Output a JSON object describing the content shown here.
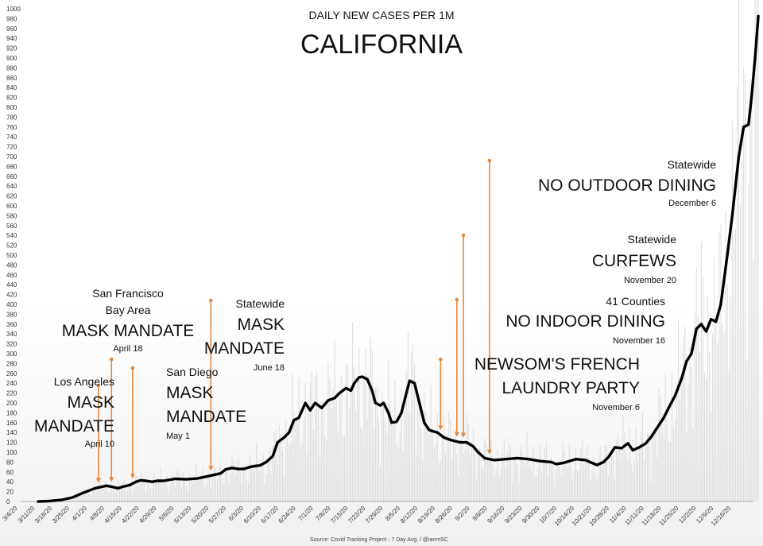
{
  "chart_data": {
    "type": "line",
    "title": "CALIFORNIA",
    "subtitle": "DAILY NEW CASES PER 1M",
    "source": "Source: Covid Tracking Project - 7 Day Avg. / @ianmSC",
    "ylim": [
      0,
      1000
    ],
    "y_ticks": [
      "0",
      "20",
      "40",
      "60",
      "80",
      "100",
      "120",
      "140",
      "160",
      "180",
      "200",
      "220",
      "240",
      "260",
      "280",
      "300",
      "320",
      "340",
      "360",
      "380",
      "400",
      "420",
      "440",
      "460",
      "480",
      "500",
      "520",
      "540",
      "560",
      "580",
      "600",
      "620",
      "640",
      "660",
      "680",
      "700",
      "720",
      "740",
      "760",
      "780",
      "800",
      "820",
      "840",
      "860",
      "880",
      "900",
      "920",
      "940",
      "960",
      "980",
      "1000"
    ],
    "x_ticks": [
      "3/4/20",
      "3/11/20",
      "3/18/20",
      "3/25/20",
      "4/1/20",
      "4/8/20",
      "4/15/20",
      "4/22/20",
      "4/29/20",
      "5/6/20",
      "5/13/20",
      "5/20/20",
      "5/27/20",
      "6/3/20",
      "6/10/20",
      "6/17/20",
      "6/24/20",
      "7/1/20",
      "7/8/20",
      "7/15/20",
      "7/22/20",
      "7/29/20",
      "8/5/20",
      "8/12/20",
      "8/19/20",
      "8/26/20",
      "9/2/20",
      "9/9/20",
      "9/16/20",
      "9/23/20",
      "9/30/20",
      "10/7/20",
      "10/14/20",
      "10/21/20",
      "10/28/20",
      "11/4/20",
      "11/11/20",
      "11/18/20",
      "11/25/20",
      "12/2/20",
      "12/9/20",
      "12/16/20"
    ],
    "grid": "vertical bars (daily values)",
    "series": [
      {
        "points": [
          [
            0,
            0
          ],
          [
            7,
            1
          ],
          [
            14,
            3
          ],
          [
            21,
            8
          ],
          [
            28,
            18
          ],
          [
            35,
            27
          ],
          [
            42,
            32
          ],
          [
            45,
            30
          ],
          [
            49,
            27
          ],
          [
            52,
            30
          ],
          [
            56,
            33
          ],
          [
            60,
            40
          ],
          [
            63,
            43
          ],
          [
            66,
            42
          ],
          [
            70,
            40
          ],
          [
            73,
            42
          ],
          [
            77,
            42
          ],
          [
            84,
            46
          ],
          [
            91,
            45
          ],
          [
            98,
            47
          ],
          [
            105,
            52
          ],
          [
            112,
            57
          ],
          [
            115,
            65
          ],
          [
            119,
            68
          ],
          [
            123,
            66
          ],
          [
            126,
            66
          ],
          [
            130,
            70
          ],
          [
            133,
            72
          ],
          [
            136,
            73
          ],
          [
            140,
            80
          ],
          [
            144,
            92
          ],
          [
            147,
            120
          ],
          [
            151,
            130
          ],
          [
            154,
            140
          ],
          [
            157,
            165
          ],
          [
            160,
            170
          ],
          [
            164,
            200
          ],
          [
            167,
            185
          ],
          [
            170,
            200
          ],
          [
            174,
            190
          ],
          [
            178,
            205
          ],
          [
            182,
            210
          ],
          [
            185,
            220
          ],
          [
            189,
            230
          ],
          [
            192,
            225
          ],
          [
            194,
            240
          ],
          [
            197,
            252
          ],
          [
            199,
            253
          ],
          [
            202,
            248
          ],
          [
            205,
            225
          ],
          [
            207,
            200
          ],
          [
            210,
            195
          ],
          [
            212,
            200
          ],
          [
            215,
            180
          ],
          [
            217,
            160
          ],
          [
            220,
            162
          ],
          [
            223,
            180
          ],
          [
            226,
            220
          ],
          [
            228,
            245
          ],
          [
            231,
            240
          ],
          [
            234,
            200
          ],
          [
            237,
            160
          ],
          [
            240,
            145
          ],
          [
            245,
            140
          ],
          [
            249,
            130
          ],
          [
            253,
            125
          ],
          [
            259,
            120
          ],
          [
            263,
            120
          ],
          [
            267,
            112
          ],
          [
            270,
            100
          ],
          [
            274,
            88
          ],
          [
            280,
            84
          ],
          [
            287,
            86
          ],
          [
            294,
            88
          ],
          [
            301,
            86
          ],
          [
            308,
            82
          ],
          [
            315,
            80
          ],
          [
            318,
            76
          ],
          [
            322,
            78
          ],
          [
            326,
            82
          ],
          [
            330,
            86
          ],
          [
            336,
            84
          ],
          [
            340,
            78
          ],
          [
            343,
            74
          ],
          [
            347,
            80
          ],
          [
            350,
            90
          ],
          [
            352,
            100
          ],
          [
            354,
            110
          ],
          [
            358,
            108
          ],
          [
            362,
            118
          ],
          [
            365,
            104
          ],
          [
            369,
            110
          ],
          [
            373,
            118
          ],
          [
            376,
            130
          ],
          [
            380,
            150
          ],
          [
            384,
            170
          ],
          [
            387,
            190
          ],
          [
            391,
            215
          ],
          [
            395,
            250
          ],
          [
            398,
            285
          ],
          [
            401,
            300
          ],
          [
            404,
            350
          ],
          [
            407,
            360
          ],
          [
            410,
            345
          ],
          [
            413,
            370
          ],
          [
            416,
            365
          ],
          [
            419,
            400
          ],
          [
            423,
            500
          ],
          [
            426,
            580
          ],
          [
            430,
            700
          ],
          [
            433,
            760
          ],
          [
            436,
            765
          ],
          [
            438,
            825
          ],
          [
            440,
            900
          ],
          [
            442,
            985
          ]
        ]
      }
    ],
    "annotations": [
      {
        "label_top": "Los Angeles",
        "label_main": [
          "MASK",
          "MANDATE"
        ],
        "date": "April 10",
        "x": 37
      },
      {
        "label_top": [
          "San Francisco",
          "Bay Area"
        ],
        "label_main": [
          "MASK MANDATE"
        ],
        "date": "April 18",
        "x": 45
      },
      {
        "label_top": "San Diego",
        "label_main": [
          "MASK",
          "MANDATE"
        ],
        "date": "May 1",
        "x": 58
      },
      {
        "label_top": "Statewide",
        "label_main": [
          "MASK",
          "MANDATE"
        ],
        "date": "June 18",
        "x": 106
      },
      {
        "label_main": [
          "NEWSOM'S FRENCH",
          "LAUNDRY PARTY"
        ],
        "date": "November 6",
        "x": 247
      },
      {
        "label_top": "41 Counties",
        "label_main": [
          "NO INDOOR DINING"
        ],
        "date": "November 16",
        "x": 257
      },
      {
        "label_top": "Statewide",
        "label_main": [
          "CURFEWS"
        ],
        "date": "November 20",
        "x": 261
      },
      {
        "label_top": "Statewide",
        "label_main": [
          "NO OUTDOOR DINING"
        ],
        "date": "December 6",
        "x": 277
      }
    ]
  }
}
